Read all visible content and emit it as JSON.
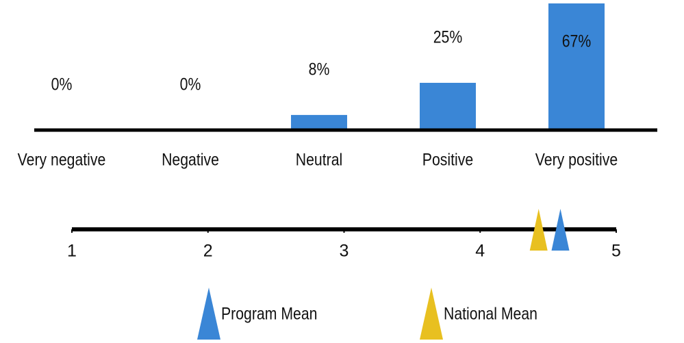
{
  "chart_data": [
    {
      "type": "bar",
      "categories": [
        "Very negative",
        "Negative",
        "Neutral",
        "Positive",
        "Very positive"
      ],
      "values": [
        0,
        0,
        8,
        25,
        67
      ],
      "value_labels": [
        "0%",
        "0%",
        "8%",
        "25%",
        "67%"
      ],
      "color": "#3a86d6"
    },
    {
      "type": "mean-scale",
      "xlim": [
        1,
        5
      ],
      "xticks": [
        1,
        2,
        3,
        4,
        5
      ],
      "series": [
        {
          "name": "Program Mean",
          "color": "#3a86d6",
          "values": [
            4.59
          ]
        },
        {
          "name": "National Mean",
          "color": "#e8c020",
          "values": [
            4.43
          ]
        }
      ]
    }
  ]
}
